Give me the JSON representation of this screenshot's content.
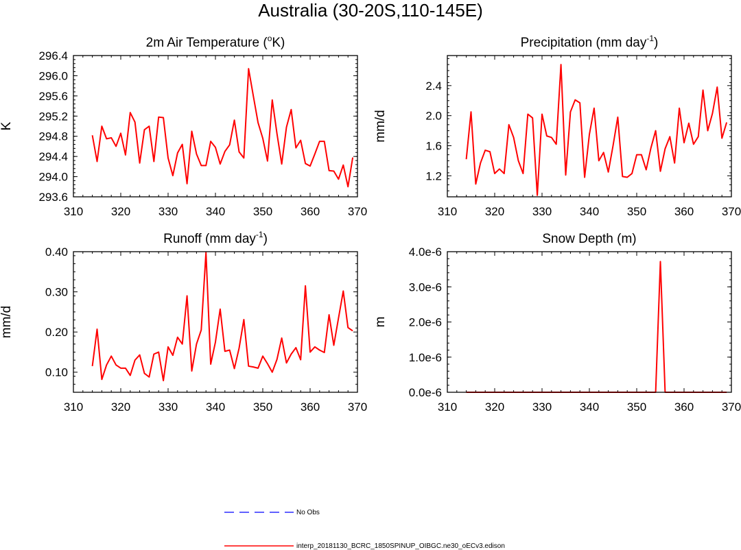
{
  "figure": {
    "title": "Australia (30-20S,110-145E)",
    "series_color": "#ff0000",
    "obs_color": "#0000ff"
  },
  "legend": {
    "obs_label": "No Obs",
    "model_label": "interp_20181130_BCRC_1850SPINUP_OIBGC.ne30_oECv3.edison"
  },
  "chart_data": [
    {
      "type": "line",
      "title_main": "2m Air Temperature (",
      "title_sup": "o",
      "title_end": "K)",
      "ylabel": "K",
      "xlim": [
        310,
        370
      ],
      "ylim": [
        293.6,
        296.4
      ],
      "xticks": [
        "310",
        "320",
        "330",
        "340",
        "350",
        "360",
        "370"
      ],
      "yticks": [
        "293.6",
        "294.0",
        "294.4",
        "294.8",
        "295.2",
        "295.6",
        "296.0",
        "296.4"
      ],
      "x_start": 314,
      "values": [
        294.82,
        294.3,
        295.0,
        294.75,
        294.77,
        294.6,
        294.86,
        294.43,
        295.27,
        295.08,
        294.27,
        294.93,
        295.0,
        294.3,
        295.18,
        295.17,
        294.37,
        294.02,
        294.47,
        294.64,
        293.86,
        294.9,
        294.45,
        294.22,
        294.22,
        294.7,
        294.58,
        294.25,
        294.5,
        294.63,
        295.12,
        294.49,
        294.37,
        296.14,
        295.6,
        295.07,
        294.76,
        294.31,
        295.52,
        294.85,
        294.25,
        294.98,
        295.33,
        294.57,
        294.72,
        294.26,
        294.21,
        294.45,
        294.7,
        294.7,
        294.12,
        294.11,
        293.95,
        294.23,
        293.8,
        294.38
      ]
    },
    {
      "type": "line",
      "title_main": "Precipitation (mm day",
      "title_sup": "-1",
      "title_end": ")",
      "ylabel": "mm/d",
      "xlim": [
        310,
        370
      ],
      "ylim": [
        0.92,
        2.8
      ],
      "xticks": [
        "310",
        "320",
        "330",
        "340",
        "350",
        "360",
        "370"
      ],
      "yticks": [
        "1.2",
        "1.6",
        "2.0",
        "2.4"
      ],
      "ytick_values": [
        1.2,
        1.6,
        2.0,
        2.4
      ],
      "x_start": 314,
      "values": [
        1.42,
        2.05,
        1.09,
        1.37,
        1.54,
        1.52,
        1.23,
        1.29,
        1.23,
        1.88,
        1.71,
        1.4,
        1.23,
        2.02,
        1.97,
        0.94,
        2.02,
        1.73,
        1.71,
        1.62,
        2.68,
        1.21,
        2.05,
        2.21,
        2.17,
        1.18,
        1.75,
        2.1,
        1.4,
        1.51,
        1.25,
        1.6,
        1.98,
        1.19,
        1.18,
        1.23,
        1.48,
        1.48,
        1.28,
        1.57,
        1.8,
        1.26,
        1.56,
        1.72,
        1.37,
        2.1,
        1.64,
        1.9,
        1.62,
        1.72,
        2.34,
        1.8,
        2.03,
        2.38,
        1.7,
        1.91
      ]
    },
    {
      "type": "line",
      "title_main": "Runoff (mm day",
      "title_sup": "-1",
      "title_end": ")",
      "ylabel": "mm/d",
      "xlim": [
        310,
        370
      ],
      "ylim": [
        0.05,
        0.4
      ],
      "xticks": [
        "310",
        "320",
        "330",
        "340",
        "350",
        "360",
        "370"
      ],
      "yticks": [
        "0.10",
        "0.20",
        "0.30",
        "0.40"
      ],
      "ytick_values": [
        0.1,
        0.2,
        0.3,
        0.4
      ],
      "x_start": 314,
      "values": [
        0.115,
        0.207,
        0.082,
        0.118,
        0.14,
        0.118,
        0.11,
        0.11,
        0.092,
        0.13,
        0.143,
        0.097,
        0.088,
        0.145,
        0.15,
        0.079,
        0.163,
        0.142,
        0.187,
        0.17,
        0.29,
        0.103,
        0.17,
        0.205,
        0.398,
        0.12,
        0.175,
        0.257,
        0.152,
        0.155,
        0.109,
        0.16,
        0.231,
        0.115,
        0.113,
        0.11,
        0.14,
        0.121,
        0.1,
        0.132,
        0.185,
        0.123,
        0.145,
        0.161,
        0.131,
        0.315,
        0.15,
        0.163,
        0.155,
        0.149,
        0.243,
        0.167,
        0.235,
        0.302,
        0.211,
        0.203
      ]
    },
    {
      "type": "line",
      "title_main": "Snow Depth (m)",
      "title_sup": "",
      "title_end": "",
      "ylabel": "m",
      "xlim": [
        310,
        370
      ],
      "ylim": [
        0,
        4e-06
      ],
      "xticks": [
        "310",
        "320",
        "330",
        "340",
        "350",
        "360",
        "370"
      ],
      "yticks": [
        "0.0e-6",
        "1.0e-6",
        "2.0e-6",
        "3.0e-6",
        "4.0e-6"
      ],
      "ytick_values": [
        0,
        1e-06,
        2e-06,
        3e-06,
        4e-06
      ],
      "x_start": 314,
      "values": [
        0,
        0,
        0,
        0,
        0,
        0,
        0,
        0,
        0,
        0,
        0,
        0,
        0,
        0,
        0,
        0,
        0,
        0,
        0,
        0,
        0,
        0,
        0,
        0,
        0,
        0,
        0,
        0,
        0,
        0,
        0,
        0,
        0,
        0,
        0,
        0,
        0,
        0,
        0,
        0,
        0,
        3.72e-06,
        0,
        0,
        0,
        0,
        0,
        0,
        0,
        0,
        0,
        0,
        0,
        0,
        0,
        0
      ]
    }
  ]
}
